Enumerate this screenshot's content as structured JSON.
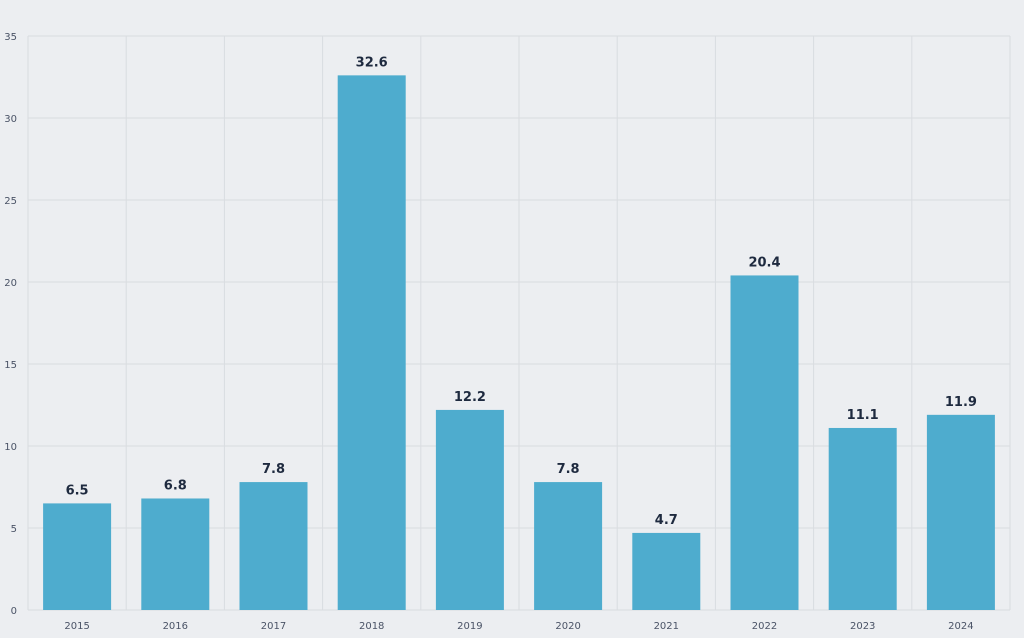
{
  "chart_data": {
    "type": "bar",
    "title": "",
    "xlabel": "",
    "ylabel": "",
    "categories": [
      "2015",
      "2016",
      "2017",
      "2018",
      "2019",
      "2020",
      "2021",
      "2022",
      "2023",
      "2024"
    ],
    "values": [
      6.5,
      6.8,
      7.8,
      32.6,
      12.2,
      7.8,
      4.7,
      20.4,
      11.1,
      11.9
    ],
    "ylim": [
      0,
      35
    ],
    "yticks": [
      0,
      5,
      10,
      15,
      20,
      25,
      30,
      35
    ],
    "grid": true,
    "data_labels": true,
    "colors": {
      "bar": "#4eacce",
      "background": "#eceef1",
      "grid": "#d9dce0",
      "label": "#1e2a3f"
    }
  }
}
